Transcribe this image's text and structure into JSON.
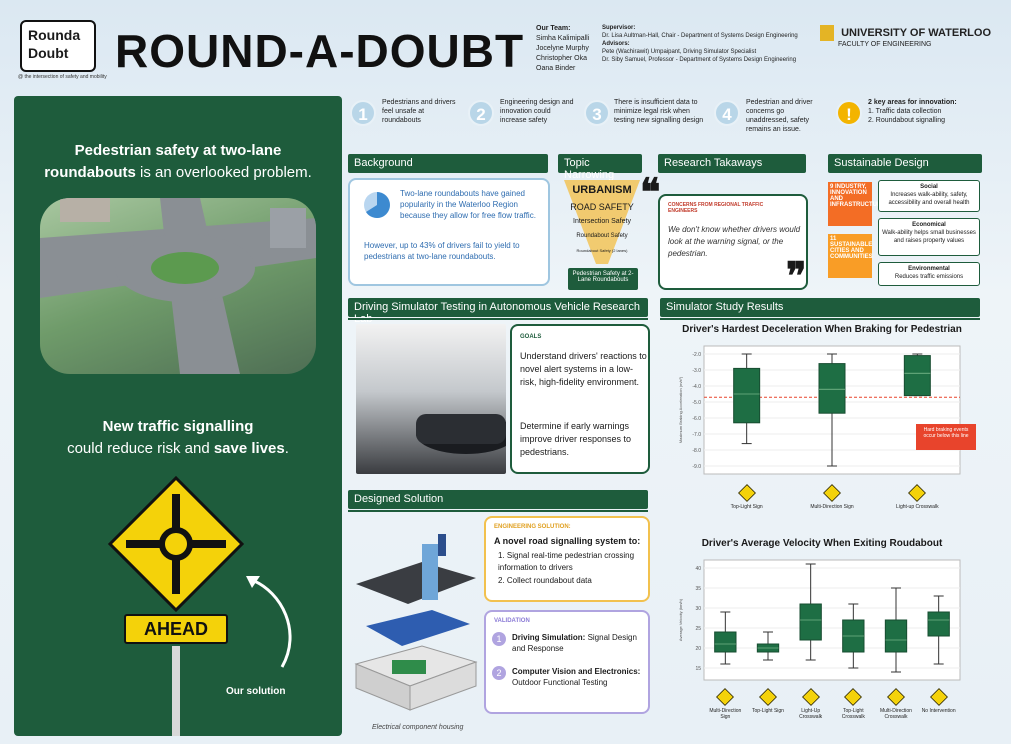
{
  "header": {
    "logo_line1": "Rounda",
    "logo_line2": "Doubt",
    "tagline": "@ the intersection of safety and mobility",
    "title": "ROUND-A-DOUBT",
    "team_label": "Our Team:",
    "team": [
      "Simha Kalimipalli",
      "Jocelyne Murphy",
      "Christopher Oka",
      "Oana Binder"
    ],
    "supervisor_label": "Supervisor:",
    "supervisor": "Dr. Lisa Aultman-Hall, Chair - Department of Systems Design Engineering",
    "advisors_label": "Advisors:",
    "advisors": [
      "Pete (Wachirawit) Umpaipant, Driving Simulator Specialist",
      "Dr. Siby Samuel, Professor - Department of Systems Design Engineering"
    ],
    "university": "UNIVERSITY OF WATERLOO",
    "faculty": "FACULTY OF ENGINEERING"
  },
  "left": {
    "headline_a": "Pedestrian safety at two-lane",
    "headline_b_bold": "roundabouts",
    "headline_b_rest": " is an overlooked problem.",
    "mid_a": "New traffic signalling",
    "mid_b": "could reduce risk and ",
    "mid_b_bold": "save lives",
    "sign_label": "AHEAD",
    "our_solution": "Our solution"
  },
  "steps": [
    {
      "num": "1",
      "text": "Pedestrians and drivers feel unsafe at roundabouts"
    },
    {
      "num": "2",
      "text": "Engineering design and innovation could increase safety"
    },
    {
      "num": "3",
      "text": "There is insufficient data to minimize legal risk when testing new signalling design"
    },
    {
      "num": "4",
      "text": "Pedestrian and driver concerns go unaddressed, safety remains an issue."
    },
    {
      "num": "!",
      "text": "2 key areas for innovation:",
      "items": [
        "1. Traffic data collection",
        "2. Roundabout signalling"
      ]
    }
  ],
  "background": {
    "title": "Background",
    "p1": "Two-lane roundabouts have gained popularity in the Waterloo Region because they allow for free flow traffic.",
    "p2": "However, up to 43% of drivers fail to yield to pedestrians at two-lane roundabouts."
  },
  "topic": {
    "title": "Topic Narrowing",
    "levels": [
      "URBANISM",
      "ROAD SAFETY",
      "Intersection Safety",
      "Roundabout Safety",
      "Roundabout Safety (2 lanes)"
    ],
    "final": "Pedestrian Safety at 2-Lane Roundabouts"
  },
  "research": {
    "title": "Research Takaways",
    "label": "CONCERNS FROM REGIONAL TRAFFIC ENGINEERS",
    "quote": "We don't know whether drivers would look at the warning signal, or the pedestrian."
  },
  "sustain": {
    "title": "Sustainable Design",
    "sdg9": "9 INDUSTRY, INNOVATION AND INFRASTRUCTURE",
    "sdg11": "11 SUSTAINABLE CITIES AND COMMUNITIES",
    "social_t": "Social",
    "social": "Increases walk-ability, safety, accessibility and overall health",
    "econ_t": "Economical",
    "econ": "Walk-ability helps small businesses and raises property values",
    "env_t": "Environmental",
    "env": "Reduces traffic emissions"
  },
  "sim": {
    "title": "Driving Simulator Testing in Autonomous Vehicle Research Lab",
    "goals": "GOALS",
    "g1": "Understand drivers' reactions to novel alert systems in a low-risk, high-fidelity environment.",
    "g2": "Determine if early warnings improve driver responses to pedestrians."
  },
  "design": {
    "title": "Designed Solution",
    "eng_label": "ENGINEERING SOLUTION:",
    "eng_head": "A novel road signalling system to:",
    "eng_items": [
      "1. Signal real-time pedestrian crossing information to drivers",
      "2. Collect roundabout data"
    ],
    "val_label": "VALIDATION",
    "v1_bold": "Driving Simulation:",
    "v1": " Signal Design and Response",
    "v2_bold": "Computer Vision and Electronics:",
    "v2": " Outdoor Functional Testing",
    "caption": "Electrical component housing"
  },
  "results": {
    "title": "Simulator Study Results",
    "annotation": "Hard braking events occur below this line"
  },
  "chart_data": [
    {
      "type": "box",
      "title": "Driver's Hardest Deceleration When Braking for Pedestrian",
      "ylabel": "Maximum Braking Acceleration (m/s²)",
      "ylim": [
        -9.5,
        -1.5
      ],
      "yticks": [
        "-2.0",
        "-3.0",
        "-4.0",
        "-5.0",
        "-6.0",
        "-7.0",
        "-8.0",
        "-9.0"
      ],
      "threshold": -4.7,
      "categories": [
        "Top-Light Sign",
        "Multi-Direction Sign",
        "Light-up Crosswalk"
      ],
      "boxes": [
        {
          "min": -7.6,
          "q1": -6.3,
          "median": -4.5,
          "q3": -2.9,
          "max": -2.0
        },
        {
          "min": -9.0,
          "q1": -5.7,
          "median": -4.2,
          "q3": -2.6,
          "max": -2.0
        },
        {
          "min": -4.6,
          "q1": -4.6,
          "median": -3.2,
          "q3": -2.1,
          "max": -2.0
        }
      ]
    },
    {
      "type": "box",
      "title": "Driver's Average Velocity When Exiting Roudabout",
      "ylabel": "Average Velocity (km/h)",
      "ylim": [
        12,
        42
      ],
      "yticks": [
        "15",
        "20",
        "25",
        "30",
        "35",
        "40"
      ],
      "categories": [
        "Multi-Direction Sign",
        "Top-Light Sign",
        "Light-Up Crosswalk",
        "Top-Light Crosswalk",
        "Multi-Direction Crosswalk",
        "No Intervention"
      ],
      "boxes": [
        {
          "min": 16,
          "q1": 19,
          "median": 21,
          "q3": 24,
          "max": 29
        },
        {
          "min": 17,
          "q1": 19,
          "median": 20,
          "q3": 21,
          "max": 24
        },
        {
          "min": 17,
          "q1": 22,
          "median": 27,
          "q3": 31,
          "max": 41
        },
        {
          "min": 15,
          "q1": 19,
          "median": 23,
          "q3": 27,
          "max": 31
        },
        {
          "min": 14,
          "q1": 19,
          "median": 22,
          "q3": 27,
          "max": 35
        },
        {
          "min": 16,
          "q1": 23,
          "median": 27,
          "q3": 29,
          "max": 33
        }
      ]
    }
  ]
}
